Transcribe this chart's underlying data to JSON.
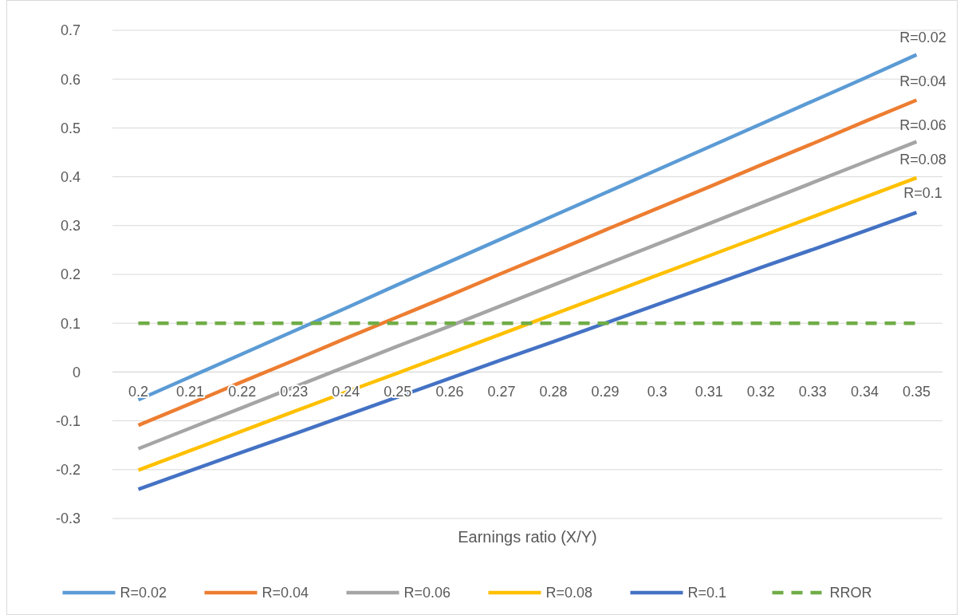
{
  "chart_data": {
    "type": "line",
    "xlabel": "Earnings ratio (X/Y)",
    "categories": [
      "0.2",
      "0.21",
      "0.22",
      "0.23",
      "0.24",
      "0.25",
      "0.26",
      "0.27",
      "0.28",
      "0.29",
      "0.3",
      "0.31",
      "0.32",
      "0.33",
      "0.34",
      "0.35"
    ],
    "series": [
      {
        "name": "R=0.02",
        "color": "#5b9bd5",
        "values": [
          -0.057,
          -0.01,
          0.037,
          0.084,
          0.131,
          0.179,
          0.226,
          0.273,
          0.32,
          0.367,
          0.414,
          0.461,
          0.508,
          0.555,
          0.602,
          0.65
        ]
      },
      {
        "name": "R=0.04",
        "color": "#ed7d31",
        "values": [
          -0.109,
          -0.065,
          -0.02,
          0.024,
          0.069,
          0.113,
          0.157,
          0.202,
          0.246,
          0.291,
          0.335,
          0.379,
          0.424,
          0.468,
          0.513,
          0.557
        ]
      },
      {
        "name": "R=0.06",
        "color": "#a5a5a5",
        "values": [
          -0.157,
          -0.115,
          -0.073,
          -0.031,
          0.011,
          0.053,
          0.094,
          0.136,
          0.178,
          0.22,
          0.262,
          0.304,
          0.346,
          0.388,
          0.43,
          0.472
        ]
      },
      {
        "name": "R=0.08",
        "color": "#ffc000",
        "values": [
          -0.201,
          -0.161,
          -0.121,
          -0.081,
          -0.041,
          -0.002,
          0.038,
          0.078,
          0.118,
          0.158,
          0.198,
          0.238,
          0.278,
          0.318,
          0.358,
          0.398
        ]
      },
      {
        "name": "R=0.1",
        "color": "#4472c4",
        "values": [
          -0.24,
          -0.202,
          -0.164,
          -0.127,
          -0.089,
          -0.051,
          -0.013,
          0.025,
          0.062,
          0.1,
          0.138,
          0.176,
          0.214,
          0.251,
          0.289,
          0.327
        ]
      },
      {
        "name": "RROR",
        "color": "#70ad47",
        "line_style": "dashed",
        "values": [
          0.1,
          0.1,
          0.1,
          0.1,
          0.1,
          0.1,
          0.1,
          0.1,
          0.1,
          0.1,
          0.1,
          0.1,
          0.1,
          0.1,
          0.1,
          0.1
        ]
      }
    ],
    "annotations": [
      {
        "text": "R=0.02",
        "x": "0.35",
        "y": 0.65
      },
      {
        "text": "R=0.04",
        "x": "0.35",
        "y": 0.56
      },
      {
        "text": "R=0.06",
        "x": "0.35",
        "y": 0.47
      },
      {
        "text": "R=0.08",
        "x": "0.35",
        "y": 0.4
      },
      {
        "text": "R=0.1",
        "x": "0.35",
        "y": 0.33
      }
    ],
    "ylim": [
      -0.3,
      0.7
    ],
    "yticks": [
      -0.3,
      -0.2,
      -0.1,
      0,
      0.1,
      0.2,
      0.3,
      0.4,
      0.5,
      0.6,
      0.7
    ],
    "grid": "y",
    "legend": "bottom",
    "line_style": "solid",
    "marker": "none"
  }
}
